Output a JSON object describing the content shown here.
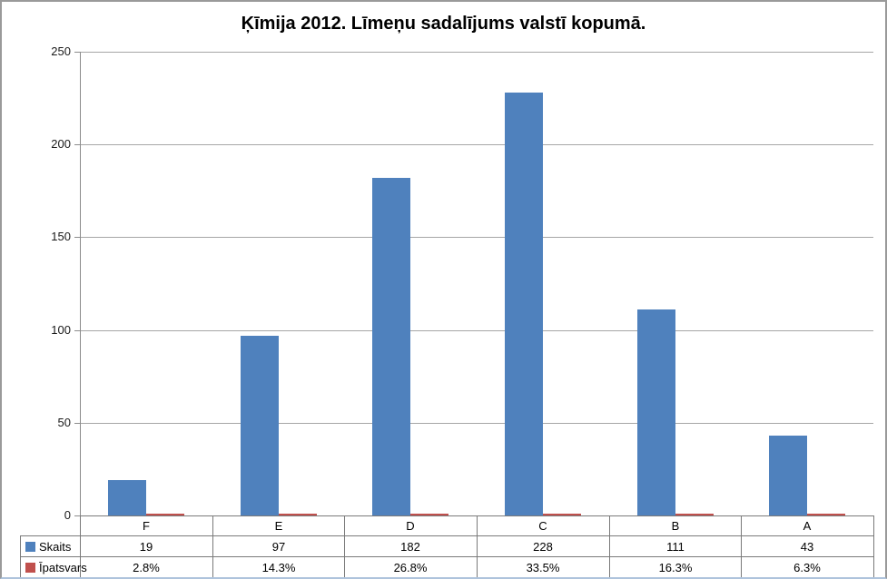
{
  "chart_data": {
    "type": "bar",
    "title": "Ķīmija 2012. Līmeņu sadalījums valstī kopumā.",
    "categories": [
      "F",
      "E",
      "D",
      "C",
      "B",
      "A"
    ],
    "series": [
      {
        "name": "Skaits",
        "color": "#4F81BD",
        "values": [
          19,
          97,
          182,
          228,
          111,
          43
        ]
      },
      {
        "name": "Īpatsvars",
        "color": "#C0504D",
        "values": [
          0.028,
          0.143,
          0.268,
          0.335,
          0.163,
          0.063
        ],
        "display_values": [
          "2.8%",
          "14.3%",
          "26.8%",
          "33.5%",
          "16.3%",
          "6.3%"
        ]
      }
    ],
    "ylim": [
      0,
      250
    ],
    "ytick_step": 50,
    "ytick_labels": [
      "0",
      "50",
      "100",
      "150",
      "200",
      "250"
    ],
    "grid": true,
    "legend_position": "data-table-left",
    "data_table_shown": true,
    "colors": {
      "grid_line": "#A6A6A6",
      "axis_line": "#8C8C8C",
      "table_border": "#7A7A7A",
      "title_text": "#000000",
      "label_text": "#1A1A1A"
    }
  }
}
